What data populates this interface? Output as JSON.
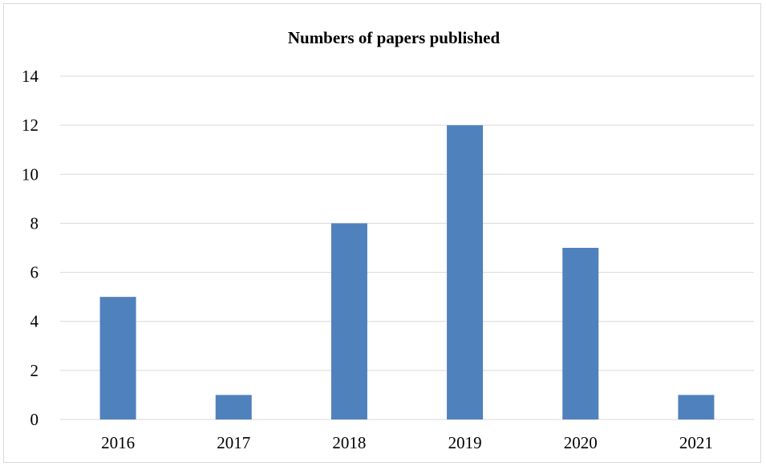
{
  "chart_data": {
    "type": "bar",
    "title": "Numbers of papers published",
    "xlabel": "",
    "ylabel": "",
    "categories": [
      "2016",
      "2017",
      "2018",
      "2019",
      "2020",
      "2021"
    ],
    "values": [
      5,
      1,
      8,
      12,
      7,
      1
    ],
    "ylim": [
      0,
      14
    ],
    "yticks": [
      "0",
      "2",
      "4",
      "6",
      "8",
      "10",
      "12",
      "14"
    ],
    "grid": true,
    "legend": "none",
    "bar_color": "#4f81bd",
    "grid_color": "#d9d9d9"
  }
}
